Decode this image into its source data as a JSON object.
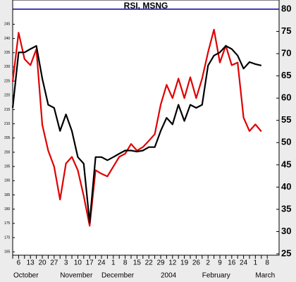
{
  "chart_data": {
    "type": "line",
    "title": "RSI, MSNG",
    "categories": [
      null,
      "6",
      null,
      "13",
      null,
      "20",
      null,
      "27",
      null,
      "3",
      null,
      "10",
      null,
      "17",
      null,
      "24",
      null,
      "1",
      null,
      "8",
      null,
      "15",
      null,
      "22",
      null,
      "29",
      null,
      "12",
      null,
      "19",
      null,
      "26",
      null,
      "2",
      null,
      "9",
      null,
      "16",
      null,
      "24",
      null,
      "1",
      null,
      "8"
    ],
    "month_categories": [
      "October",
      null,
      null,
      null,
      null,
      null,
      null,
      null,
      "November",
      null,
      null,
      null,
      null,
      null,
      null,
      "December",
      null,
      null,
      null,
      null,
      null,
      null,
      null,
      null,
      null,
      "2004",
      null,
      null,
      null,
      null,
      null,
      null,
      "February",
      null,
      null,
      null,
      null,
      null,
      null,
      null,
      null,
      "March",
      null,
      null
    ],
    "series": [
      {
        "color": "#e00000",
        "values": [
          63.7,
          74.7,
          68.8,
          67.4,
          71,
          54,
          48.2,
          44.6,
          37.2,
          45.3,
          46.8,
          43.8,
          38,
          31.3,
          43.8,
          43,
          42.4,
          44.6,
          46.8,
          47.5,
          49.7,
          48.2,
          49,
          50.4,
          51.9,
          58.5,
          63,
          60,
          64.4,
          60,
          64.7,
          60,
          64.4,
          70.3,
          75.4,
          68,
          71.8,
          67.4,
          68,
          55.6,
          52.6,
          54.1,
          52.5,
          null
        ]
      },
      {
        "color": "#000000",
        "axis": "y2",
        "values": [
          215.6,
          235.1,
          235.1,
          236.3,
          237.4,
          225.9,
          216.7,
          215.6,
          207.5,
          213.3,
          207.5,
          198.3,
          196,
          175.3,
          198.3,
          198.3,
          197.2,
          198.3,
          199.5,
          200.6,
          200.6,
          200.2,
          200.6,
          201.8,
          201.8,
          207.5,
          212.1,
          209.8,
          216.7,
          211,
          216.7,
          215.6,
          216.7,
          230.5,
          234,
          235.1,
          237.4,
          236.3,
          234,
          229.4,
          231.7,
          231,
          230.5,
          null
        ]
      }
    ],
    "hline": {
      "value": 80,
      "color": "#0000a0"
    },
    "ylim": [
      25,
      80
    ],
    "yticks": [
      25,
      30,
      35,
      40,
      45,
      50,
      55,
      60,
      65,
      70,
      75,
      80
    ],
    "y2lim": [
      164.3,
      250.3
    ],
    "y2ticks": [
      165,
      170,
      175,
      180,
      185,
      190,
      195,
      200,
      205,
      210,
      215,
      220,
      225,
      230,
      235,
      240,
      245
    ]
  }
}
